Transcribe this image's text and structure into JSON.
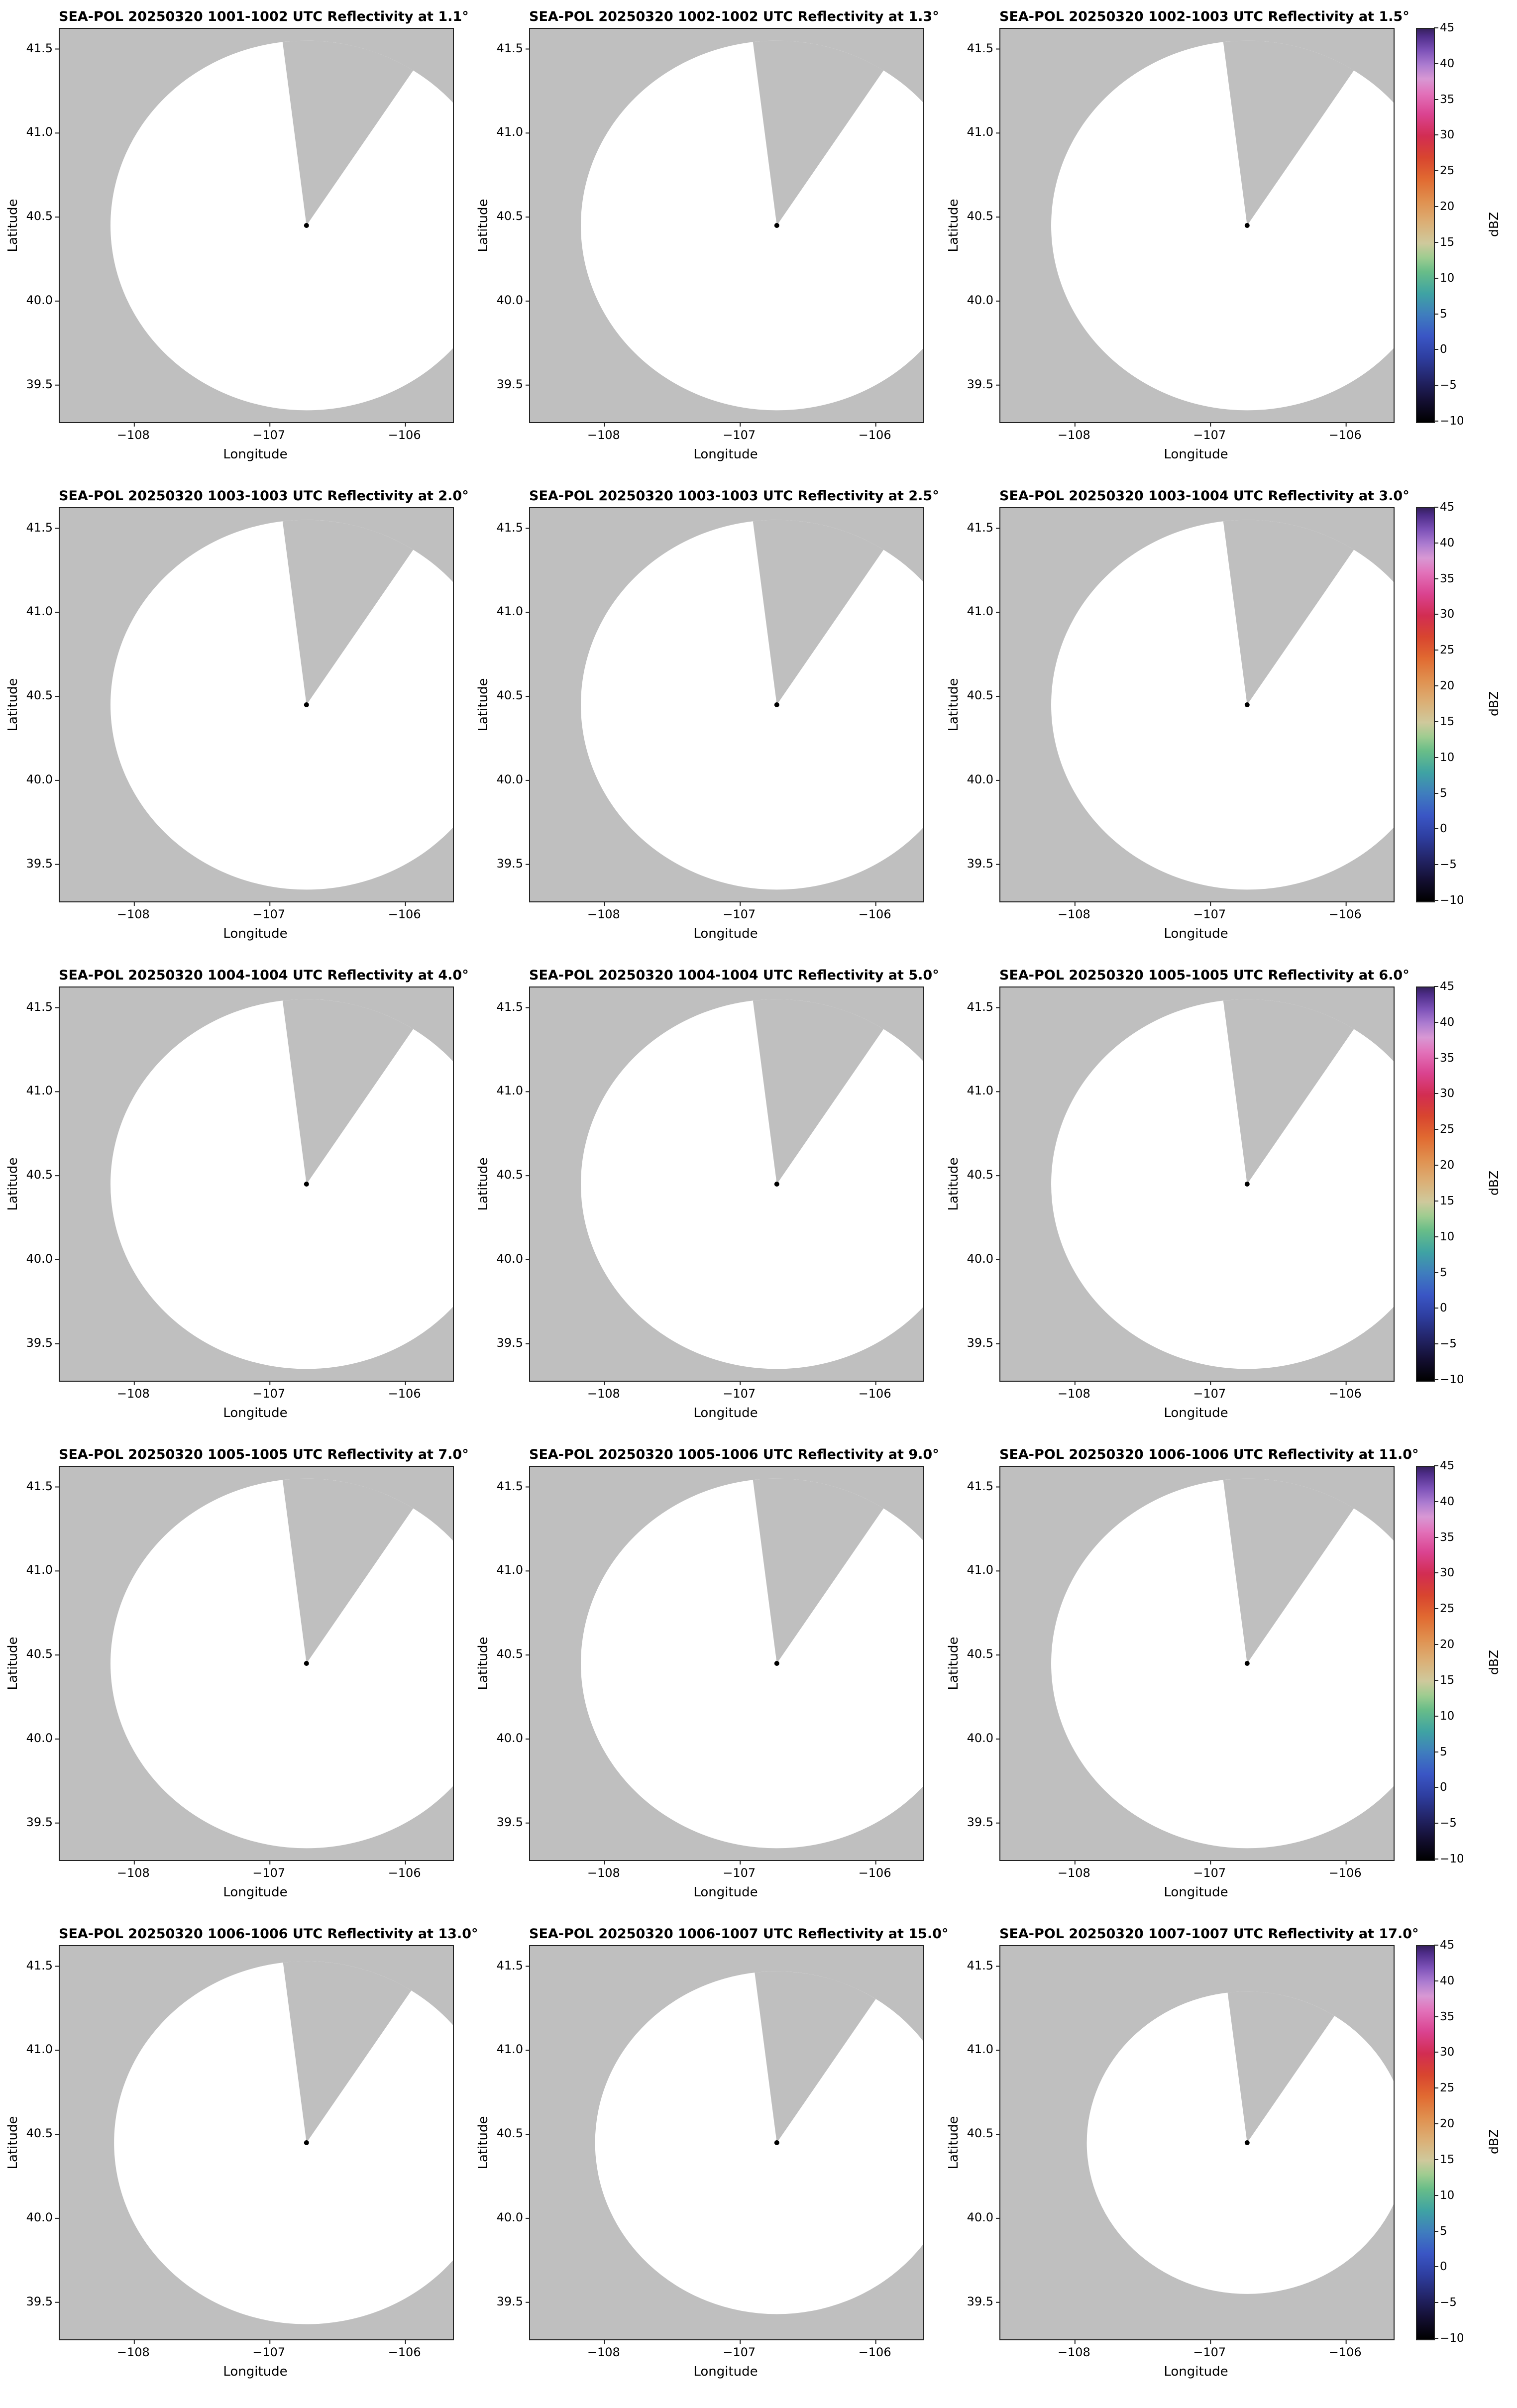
{
  "chart_data": {
    "type": "heatmap",
    "figure_title": "SEA-POL 20250320 1001-1007 UTC reflectivity PPI scans at 15 elevation angles (5 rows x 3 columns)",
    "xlabel": "Longitude",
    "ylabel": "Latitude",
    "x_tick_labels": [
      "−108",
      "−107",
      "−106"
    ],
    "x_tick_values": [
      -108,
      -107,
      -106
    ],
    "y_tick_labels": [
      "41.5",
      "41.0",
      "40.5",
      "40.0",
      "39.5"
    ],
    "y_tick_values": [
      41.5,
      41.0,
      40.5,
      40.0,
      39.5
    ],
    "x_range": [
      -108.55,
      -105.65
    ],
    "y_range": [
      39.28,
      41.62
    ],
    "grid": false,
    "legend": "one vertical colorbar at the right of each row of three panels",
    "colorbar": {
      "label": "dBZ",
      "min": -10,
      "max": 45,
      "tick_labels": [
        "45",
        "40",
        "35",
        "30",
        "25",
        "20",
        "15",
        "10",
        "5",
        "0",
        "−5",
        "−10"
      ],
      "tick_values": [
        45,
        40,
        35,
        30,
        25,
        20,
        15,
        10,
        5,
        0,
        -5,
        -10
      ],
      "stops": [
        {
          "value": -10,
          "color": "#000000"
        },
        {
          "value": -7,
          "color": "#140f33"
        },
        {
          "value": -4,
          "color": "#232569"
        },
        {
          "value": -1,
          "color": "#2e3ea0"
        },
        {
          "value": 2,
          "color": "#3a56c5"
        },
        {
          "value": 5,
          "color": "#3f7dbe"
        },
        {
          "value": 8,
          "color": "#3fa3a3"
        },
        {
          "value": 11,
          "color": "#68bd88"
        },
        {
          "value": 13,
          "color": "#9ecc90"
        },
        {
          "value": 15,
          "color": "#cfc99c"
        },
        {
          "value": 18,
          "color": "#dcae74"
        },
        {
          "value": 21,
          "color": "#e08f4e"
        },
        {
          "value": 24,
          "color": "#e16a31"
        },
        {
          "value": 27,
          "color": "#d8452f"
        },
        {
          "value": 30,
          "color": "#d22d52"
        },
        {
          "value": 33,
          "color": "#da4390"
        },
        {
          "value": 36,
          "color": "#e272ba"
        },
        {
          "value": 38,
          "color": "#d898d4"
        },
        {
          "value": 40,
          "color": "#ab7bd0"
        },
        {
          "value": 42,
          "color": "#7d52b8"
        },
        {
          "value": 44,
          "color": "#4e2d89"
        },
        {
          "value": 45,
          "color": "#36215f"
        }
      ]
    },
    "radar": {
      "name": "SEA-POL",
      "date": "20250320",
      "site_lon": -106.73,
      "site_lat": 40.45,
      "blocked_sector_azimuth_deg": [
        -7,
        33
      ]
    },
    "panels": [
      {
        "title": "SEA-POL 20250320 1001-1002 UTC Reflectivity at 1.1°",
        "time_utc": "1001-1002",
        "elevation_deg": 1.1,
        "range_radius_deg": 1.1
      },
      {
        "title": "SEA-POL 20250320 1002-1002 UTC Reflectivity at 1.3°",
        "time_utc": "1002-1002",
        "elevation_deg": 1.3,
        "range_radius_deg": 1.1
      },
      {
        "title": "SEA-POL 20250320 1002-1003 UTC Reflectivity at 1.5°",
        "time_utc": "1002-1003",
        "elevation_deg": 1.5,
        "range_radius_deg": 1.1
      },
      {
        "title": "SEA-POL 20250320 1003-1003 UTC Reflectivity at 2.0°",
        "time_utc": "1003-1003",
        "elevation_deg": 2.0,
        "range_radius_deg": 1.1
      },
      {
        "title": "SEA-POL 20250320 1003-1003 UTC Reflectivity at 2.5°",
        "time_utc": "1003-1003",
        "elevation_deg": 2.5,
        "range_radius_deg": 1.1
      },
      {
        "title": "SEA-POL 20250320 1003-1004 UTC Reflectivity at 3.0°",
        "time_utc": "1003-1004",
        "elevation_deg": 3.0,
        "range_radius_deg": 1.1
      },
      {
        "title": "SEA-POL 20250320 1004-1004 UTC Reflectivity at 4.0°",
        "time_utc": "1004-1004",
        "elevation_deg": 4.0,
        "range_radius_deg": 1.1
      },
      {
        "title": "SEA-POL 20250320 1004-1004 UTC Reflectivity at 5.0°",
        "time_utc": "1004-1004",
        "elevation_deg": 5.0,
        "range_radius_deg": 1.1
      },
      {
        "title": "SEA-POL 20250320 1005-1005 UTC Reflectivity at 6.0°",
        "time_utc": "1005-1005",
        "elevation_deg": 6.0,
        "range_radius_deg": 1.1
      },
      {
        "title": "SEA-POL 20250320 1005-1005 UTC Reflectivity at 7.0°",
        "time_utc": "1005-1005",
        "elevation_deg": 7.0,
        "range_radius_deg": 1.1
      },
      {
        "title": "SEA-POL 20250320 1005-1006 UTC Reflectivity at 9.0°",
        "time_utc": "1005-1006",
        "elevation_deg": 9.0,
        "range_radius_deg": 1.1
      },
      {
        "title": "SEA-POL 20250320 1006-1006 UTC Reflectivity at 11.0°",
        "time_utc": "1006-1006",
        "elevation_deg": 11.0,
        "range_radius_deg": 1.1
      },
      {
        "title": "SEA-POL 20250320 1006-1006 UTC Reflectivity at 13.0°",
        "time_utc": "1006-1006",
        "elevation_deg": 13.0,
        "range_radius_deg": 1.08
      },
      {
        "title": "SEA-POL 20250320 1006-1007 UTC Reflectivity at 15.0°",
        "time_utc": "1006-1007",
        "elevation_deg": 15.0,
        "range_radius_deg": 1.02
      },
      {
        "title": "SEA-POL 20250320 1007-1007 UTC Reflectivity at 17.0°",
        "time_utc": "1007-1007",
        "elevation_deg": 17.0,
        "range_radius_deg": 0.9
      }
    ],
    "values_note": "No reflectivity echoes at or above -10 dBZ are present in any panel; each panel shows only the blank white radar coverage circle over a gray no-data background, a gray blocked sector wedge extending north-northeast from the radar, and a black dot marking the radar site."
  },
  "style": {
    "no_data_gray": "#bfbfbf",
    "coverage_white": "#ffffff",
    "axis_color": "#222222",
    "dot_color": "#000000"
  }
}
